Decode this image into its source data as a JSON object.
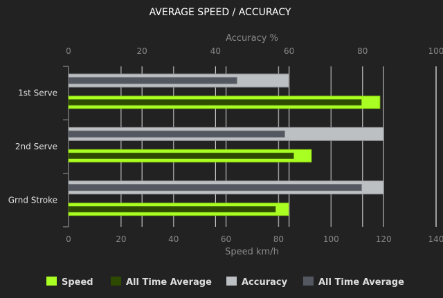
{
  "chart_data": {
    "type": "bar",
    "orientation": "horizontal",
    "title": "AVERAGE SPEED / ACCURACY",
    "categories": [
      "1st Serve",
      "2nd Serve",
      "Grnd Stroke"
    ],
    "speed_axis": {
      "label": "Speed km/h",
      "range": [
        0,
        140
      ],
      "ticks": [
        0,
        20,
        40,
        60,
        80,
        100,
        120,
        140
      ],
      "position": "bottom"
    },
    "accuracy_axis": {
      "label": "Accuracy %",
      "range": [
        0,
        100
      ],
      "ticks": [
        0,
        20,
        40,
        60,
        80,
        100
      ],
      "position": "top"
    },
    "series": [
      {
        "name": "Speed",
        "axis": "speed",
        "color": "#aaff22",
        "values": [
          118.6,
          92.5,
          83.8
        ]
      },
      {
        "name": "All Time Average",
        "axis": "speed",
        "color": "#2e4a00",
        "values": [
          111.5,
          85.7,
          78.8
        ]
      },
      {
        "name": "Accuracy",
        "axis": "accuracy",
        "color": "#bcc0c2",
        "values": [
          59.9,
          85.7,
          85.7
        ]
      },
      {
        "name": "All Time Average",
        "axis": "accuracy",
        "color": "#535860",
        "values": [
          45.8,
          58.8,
          79.7
        ]
      }
    ],
    "grid": true,
    "legend": "bottom"
  }
}
